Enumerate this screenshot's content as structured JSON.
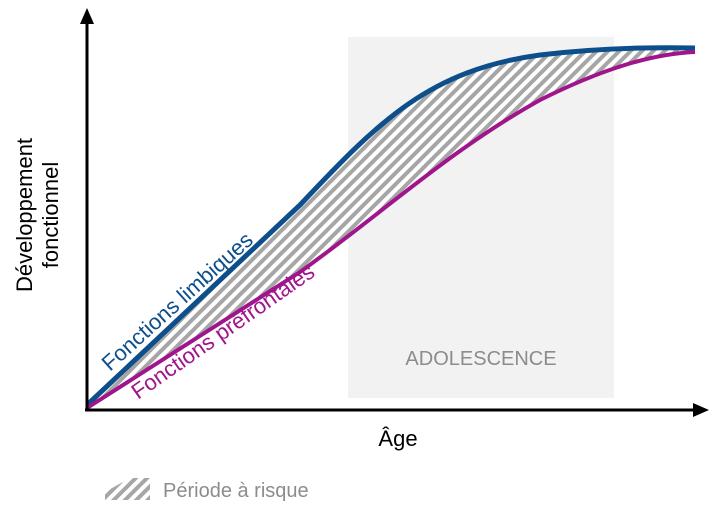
{
  "axes": {
    "y_label": [
      "Développement",
      "fonctionnel"
    ],
    "x_label": "Âge"
  },
  "curves": {
    "limbic": "Fonctions limbiques",
    "prefrontal": "Fonctions préfrontales"
  },
  "period": "ADOLESCENCE",
  "legend": "Période à risque"
}
